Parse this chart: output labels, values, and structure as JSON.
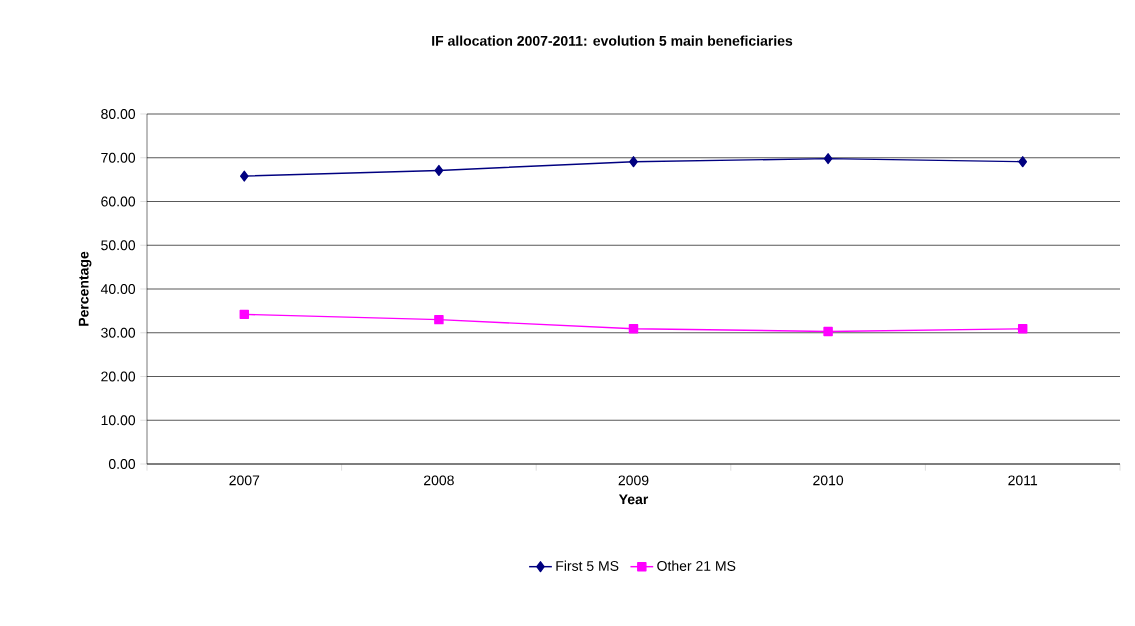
{
  "chart_data": {
    "type": "line",
    "title": "IF allocation 2007-2011: evolution 5 main beneficiaries",
    "xlabel": "Year",
    "ylabel": "Percentage",
    "categories": [
      "2007",
      "2008",
      "2009",
      "2010",
      "2011"
    ],
    "series": [
      {
        "name": "First 5 MS",
        "color": "#000080",
        "marker": "diamond",
        "values": [
          65.8,
          67.1,
          69.1,
          69.8,
          69.1
        ]
      },
      {
        "name": "Other 21 MS",
        "color": "#ff00ff",
        "marker": "square",
        "values": [
          34.2,
          33.0,
          30.9,
          30.3,
          30.9
        ]
      }
    ],
    "ylim": [
      0,
      80
    ],
    "yticks": [
      {
        "value": 0,
        "label": "0.00"
      },
      {
        "value": 10,
        "label": "10.00"
      },
      {
        "value": 20,
        "label": "20.00"
      },
      {
        "value": 30,
        "label": "30.00"
      },
      {
        "value": 40,
        "label": "40.00"
      },
      {
        "value": 50,
        "label": "50.00"
      },
      {
        "value": 60,
        "label": "60.00"
      },
      {
        "value": 70,
        "label": "70.00"
      },
      {
        "value": 80,
        "label": "80.00"
      }
    ],
    "grid": "y",
    "legend": "bottom"
  }
}
